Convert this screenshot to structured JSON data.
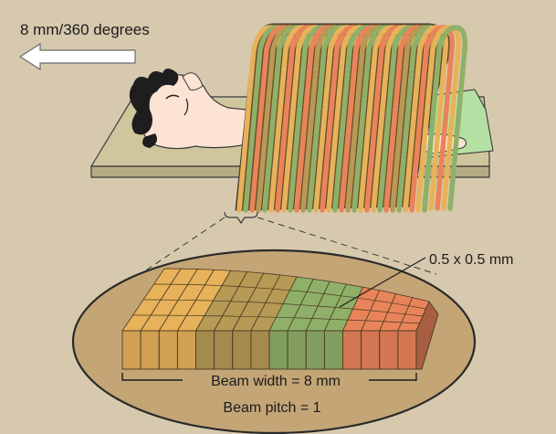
{
  "labels": {
    "direction": "8 mm/360 degrees",
    "voxel_size": "0.5 x 0.5 mm",
    "beam_width": "Beam width = 8 mm",
    "beam_pitch": "Beam pitch = 1"
  },
  "icons": {
    "direction_arrow": "left-arrow-icon",
    "patient": "patient-icon",
    "helix": "helix-beam-icon"
  },
  "colors": {
    "background": "#d7c9ad",
    "table": "#cfc69e",
    "skin": "#fde3d3",
    "gown": "#b5e0a4",
    "ellipse": "#c4a576",
    "band_orange": "#e8b25b",
    "band_olive": "#b69a55",
    "band_green": "#8fb068",
    "band_coral": "#e9845a"
  },
  "detector": {
    "band_order": [
      "orange",
      "olive",
      "green",
      "coral"
    ],
    "rows_per_band": 4
  }
}
